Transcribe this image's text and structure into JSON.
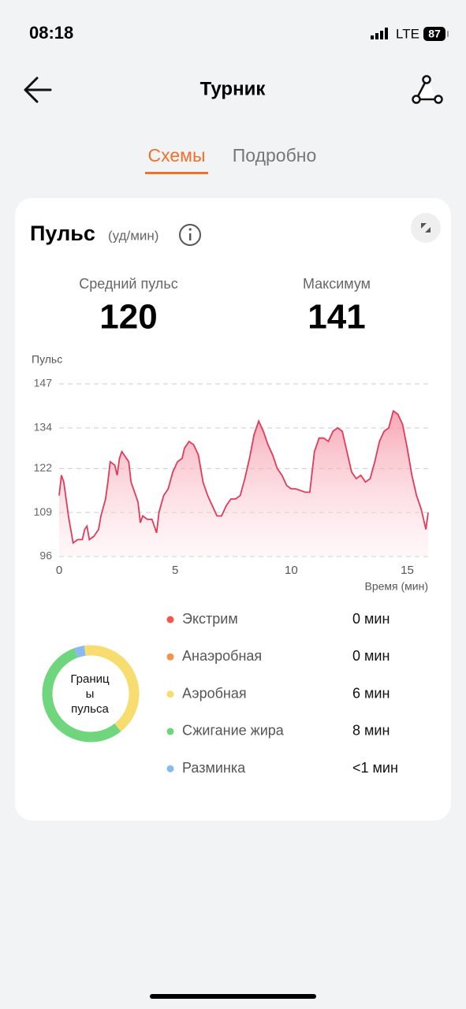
{
  "status_bar": {
    "time": "08:18",
    "network": "LTE",
    "battery": 87
  },
  "header": {
    "title": "Турник"
  },
  "tabs": [
    "Схемы",
    "Подробно"
  ],
  "card": {
    "title": "Пульс",
    "unit": "(уд/мин)",
    "stats": [
      {
        "label": "Средний пульс",
        "value": 120
      },
      {
        "label": "Максимум",
        "value": 141
      }
    ]
  },
  "chart_data": {
    "type": "area",
    "y_label": "Пульс",
    "x_label": "Время (мин)",
    "color": "#e03c5a",
    "x": [
      0,
      0.1,
      0.2,
      0.4,
      0.6,
      0.8,
      1.0,
      1.1,
      1.2,
      1.3,
      1.5,
      1.7,
      1.8,
      2.0,
      2.1,
      2.2,
      2.4,
      2.5,
      2.6,
      2.7,
      2.9,
      3.0,
      3.1,
      3.2,
      3.4,
      3.5,
      3.6,
      3.8,
      4.0,
      4.2,
      4.3,
      4.5,
      4.7,
      4.9,
      5.1,
      5.3,
      5.4,
      5.6,
      5.8,
      6.0,
      6.2,
      6.4,
      6.6,
      6.8,
      7.0,
      7.2,
      7.4,
      7.6,
      7.8,
      8.0,
      8.2,
      8.4,
      8.6,
      8.8,
      9.0,
      9.2,
      9.4,
      9.6,
      9.8,
      10.0,
      10.2,
      10.6,
      10.8,
      11.0,
      11.2,
      11.4,
      11.6,
      11.8,
      12.0,
      12.2,
      12.4,
      12.6,
      12.8,
      13.0,
      13.2,
      13.4,
      13.6,
      13.8,
      14.0,
      14.2,
      14.4,
      14.6,
      14.8,
      15.0,
      15.2,
      15.4,
      15.6,
      15.8,
      15.9
    ],
    "values": [
      114,
      120,
      118,
      108,
      100,
      101,
      101,
      104,
      105,
      101,
      102,
      104,
      108,
      113,
      118,
      124,
      123,
      120,
      125,
      127,
      125,
      124,
      118,
      116,
      112,
      106,
      108,
      107,
      107,
      103,
      109,
      114,
      116,
      121,
      124,
      125,
      128,
      130,
      129,
      126,
      118,
      114,
      111,
      108,
      108,
      111,
      113,
      113,
      114,
      119,
      125,
      132,
      136,
      133,
      129,
      126,
      122,
      120,
      117,
      116,
      116,
      115,
      115,
      127,
      131,
      131,
      130,
      133,
      134,
      133,
      127,
      121,
      119,
      120,
      118,
      119,
      124,
      130,
      133,
      134,
      139,
      138,
      135,
      128,
      120,
      114,
      110,
      104,
      109
    ],
    "xlim": [
      0,
      15.9
    ],
    "ylim": [
      96,
      147
    ],
    "xticks": [
      0,
      5,
      10,
      15
    ],
    "yticks": [
      96,
      109,
      122,
      134,
      147
    ],
    "grid": true
  },
  "zones": {
    "center_label": "Границы пульса",
    "names": [
      "Экстрим",
      "Анаэробная",
      "Аэробная",
      "Сжигание жира",
      "Разминка"
    ],
    "colors": [
      "#f0584b",
      "#f0954b",
      "#f7dc6f",
      "#6fd67e",
      "#8ab9f0"
    ],
    "values": [
      0,
      0,
      6,
      8,
      0.5
    ],
    "value_labels": [
      "0 мин",
      "0 мин",
      "6 мин",
      "8 мин",
      "<1 мин"
    ]
  }
}
